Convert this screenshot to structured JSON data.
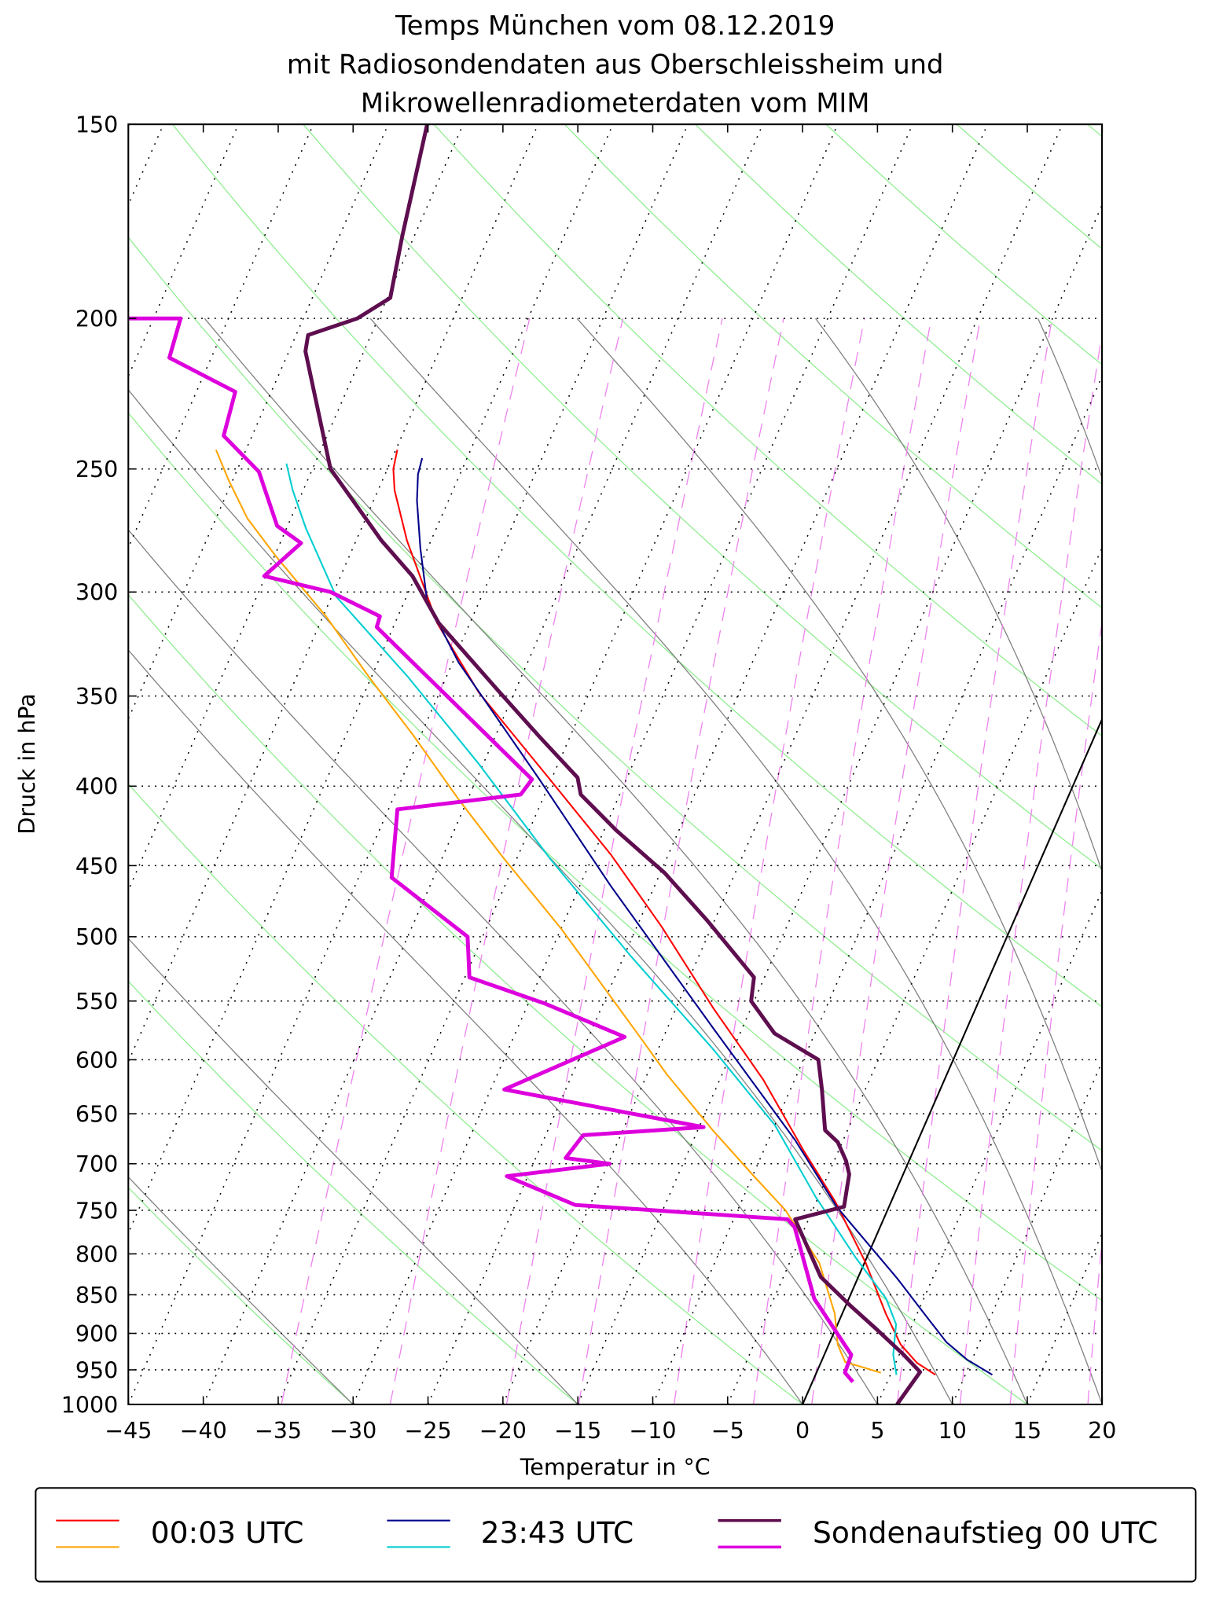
{
  "title": [
    "Temps München vom 08.12.2019",
    "mit Radiosondendaten aus Oberschleissheim und",
    "Mikrowellenradiometerdaten vom MIM"
  ],
  "chart_data": {
    "type": "line",
    "subtype": "skew-T log-p",
    "xlabel": "Temperatur in °C",
    "ylabel": "Druck in hPa",
    "xlim": [
      -45,
      20
    ],
    "ylim": [
      1000,
      150
    ],
    "x_ticks": [
      -45,
      -40,
      -35,
      -30,
      -25,
      -20,
      -15,
      -10,
      -5,
      0,
      5,
      10,
      15,
      20
    ],
    "x_tick_labels": [
      "−45",
      "−40",
      "−35",
      "−30",
      "−25",
      "−20",
      "−15",
      "−10",
      "−5",
      "0",
      "5",
      "10",
      "15",
      "20"
    ],
    "y_ticks": [
      1000,
      950,
      900,
      850,
      800,
      750,
      700,
      650,
      600,
      550,
      500,
      450,
      400,
      350,
      300,
      250,
      200,
      150
    ],
    "y_tick_labels": [
      "1000",
      "950",
      "900",
      "850",
      "800",
      "750",
      "700",
      "650",
      "600",
      "550",
      "500",
      "450",
      "400",
      "350",
      "300",
      "250",
      "200",
      "150"
    ],
    "legend_placement": "bottom, below plot",
    "background": {
      "isotherm_step": 5,
      "highlighted_isotherm": 0,
      "dry_adiabat_start_temps_1000hPa": [
        -45,
        -30,
        -15,
        0,
        15,
        30,
        45,
        60,
        75,
        90,
        105,
        120,
        135,
        150,
        165
      ],
      "moist_adiabat_start_temps_1000hPa": [
        -30,
        -15,
        0,
        5,
        10,
        15,
        20,
        25,
        30,
        35
      ],
      "mixing_ratios_g_per_kg": [
        0.2,
        0.4,
        0.8,
        1.2,
        2,
        3,
        4,
        6,
        8,
        10,
        14,
        18,
        24,
        32
      ],
      "colors": {
        "isotherm": "#000000",
        "dry_adiabat": "#90ee90",
        "moist_adiabat": "#808080",
        "mixing_ratio": "#ee82ee"
      }
    },
    "series": [
      {
        "legend": "00:03 UTC",
        "temperature": {
          "color": "#ff0000",
          "p": [
            957,
            940,
            915,
            874,
            811,
            741,
            687,
            618,
            556,
            493,
            443,
            396,
            348,
            314,
            278,
            258,
            250,
            243
          ],
          "T": [
            8.0,
            6.4,
            4.8,
            2.9,
            0.1,
            -3.7,
            -7.3,
            -12.1,
            -17.5,
            -23.3,
            -28.8,
            -35.1,
            -42.4,
            -47.2,
            -51.6,
            -53.9,
            -54.6,
            -54.9
          ]
        },
        "dewpoint": {
          "color": "#ffa500",
          "p": [
            954,
            939,
            915,
            874,
            811,
            750,
            713,
            666,
            613,
            582,
            494,
            445,
            408,
            371,
            340,
            311,
            284,
            269,
            254,
            243
          ],
          "T": [
            4.3,
            1.6,
            0.6,
            -0.5,
            -3.0,
            -6.8,
            -9.9,
            -14.0,
            -18.7,
            -21.4,
            -30.0,
            -35.9,
            -40.6,
            -45.5,
            -50.2,
            -54.8,
            -60.0,
            -62.9,
            -65.3,
            -67.0
          ]
        }
      },
      {
        "legend": "23:43 UTC",
        "temperature": {
          "color": "#00008b",
          "p": [
            957,
            936,
            912,
            881,
            829,
            746,
            676,
            573,
            464,
            396,
            333,
            304,
            281,
            262,
            252,
            246
          ],
          "T": [
            11.8,
            9.7,
            7.8,
            5.9,
            2.6,
            -3.5,
            -8.2,
            -16.9,
            -27.9,
            -35.8,
            -44.6,
            -48.5,
            -50.5,
            -52.1,
            -52.8,
            -53.0
          ]
        },
        "dewpoint": {
          "color": "#00ced1",
          "p": [
            957,
            929,
            888,
            855,
            805,
            735,
            661,
            591,
            515,
            446,
            387,
            340,
            302,
            273,
            258,
            248
          ],
          "T": [
            5.4,
            4.6,
            3.9,
            2.5,
            -0.7,
            -5.2,
            -10.0,
            -16.3,
            -24.5,
            -32.7,
            -40.3,
            -47.6,
            -54.7,
            -58.7,
            -60.7,
            -61.9
          ]
        }
      },
      {
        "legend": "Sondenaufstieg 00 UTC",
        "temperature": {
          "color": "#5e0e4f",
          "p": [
            1000,
            953,
            929,
            894,
            865,
            828,
            760,
            746,
            711,
            697,
            678,
            666,
            627,
            600,
            577,
            550,
            531,
            488,
            455,
            427,
            405,
            395,
            372,
            348,
            314,
            293,
            278,
            250,
            210,
            205,
            200,
            194,
            177,
            150
          ],
          "T": [
            6.3,
            6.9,
            5.3,
            2.7,
            0.4,
            -2.5,
            -5.9,
            -3.0,
            -3.6,
            -4.2,
            -5.3,
            -6.5,
            -7.9,
            -9.0,
            -12.7,
            -15.2,
            -15.7,
            -20.5,
            -24.7,
            -29.2,
            -32.6,
            -33.3,
            -37.0,
            -41.0,
            -47.1,
            -50.2,
            -53.3,
            -58.8,
            -63.9,
            -64.2,
            -61.4,
            -59.8,
            -60.8,
            -62.4
          ]
        },
        "dewpoint": {
          "color": "#dd00dd",
          "p": [
            967,
            954,
            929,
            855,
            769,
            760,
            744,
            713,
            700,
            694,
            671,
            663,
            627,
            580,
            552,
            531,
            500,
            458,
            414,
            405,
            396,
            316,
            311,
            300,
            293,
            279,
            272,
            251,
            238,
            223,
            212,
            200,
            200
          ],
          "T": [
            2.7,
            1.9,
            1.8,
            -2.3,
            -5.7,
            -6.4,
            -21.0,
            -26.4,
            -19.9,
            -23.0,
            -22.5,
            -14.7,
            -29.1,
            -22.6,
            -28.9,
            -34.7,
            -36.0,
            -42.8,
            -44.4,
            -36.6,
            -36.3,
            -51.1,
            -51.2,
            -55.2,
            -60.1,
            -58.6,
            -60.7,
            -63.5,
            -66.9,
            -67.4,
            -72.8,
            -73.2,
            -76.7
          ]
        }
      }
    ]
  }
}
